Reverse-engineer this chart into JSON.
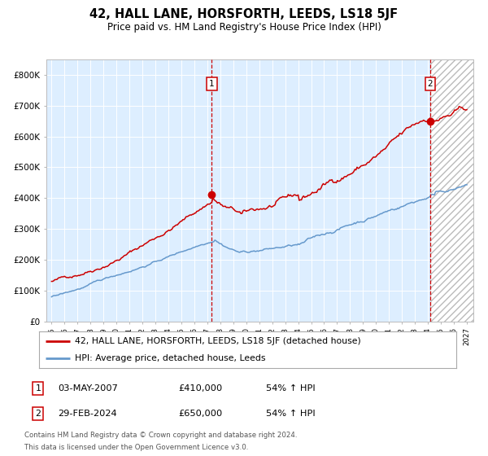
{
  "title": "42, HALL LANE, HORSFORTH, LEEDS, LS18 5JF",
  "subtitle": "Price paid vs. HM Land Registry's House Price Index (HPI)",
  "legend_label_red": "42, HALL LANE, HORSFORTH, LEEDS, LS18 5JF (detached house)",
  "legend_label_blue": "HPI: Average price, detached house, Leeds",
  "annotation1_label": "1",
  "annotation1_date": "03-MAY-2007",
  "annotation1_price": "£410,000",
  "annotation1_hpi": "54% ↑ HPI",
  "annotation2_label": "2",
  "annotation2_date": "29-FEB-2024",
  "annotation2_price": "£650,000",
  "annotation2_hpi": "54% ↑ HPI",
  "footer1": "Contains HM Land Registry data © Crown copyright and database right 2024.",
  "footer2": "This data is licensed under the Open Government Licence v3.0.",
  "red_color": "#cc0000",
  "blue_color": "#6699cc",
  "bg_color": "#ddeeff",
  "ylim": [
    0,
    850000
  ],
  "ytick_vals": [
    0,
    100000,
    200000,
    300000,
    400000,
    500000,
    600000,
    700000,
    800000
  ],
  "ytick_labels": [
    "£0",
    "£100K",
    "£200K",
    "£300K",
    "£400K",
    "£500K",
    "£600K",
    "£700K",
    "£800K"
  ],
  "xlim_start": 1994.6,
  "xlim_end": 2027.5,
  "xtick_years": [
    1995,
    1996,
    1997,
    1998,
    1999,
    2000,
    2001,
    2002,
    2003,
    2004,
    2005,
    2006,
    2007,
    2008,
    2009,
    2010,
    2011,
    2012,
    2013,
    2014,
    2015,
    2016,
    2017,
    2018,
    2019,
    2020,
    2021,
    2022,
    2023,
    2024,
    2025,
    2026,
    2027
  ],
  "sale1_year": 2007.35,
  "sale1_price": 410000,
  "sale2_year": 2024.17,
  "sale2_price": 650000,
  "hatch_start": 2024.17
}
